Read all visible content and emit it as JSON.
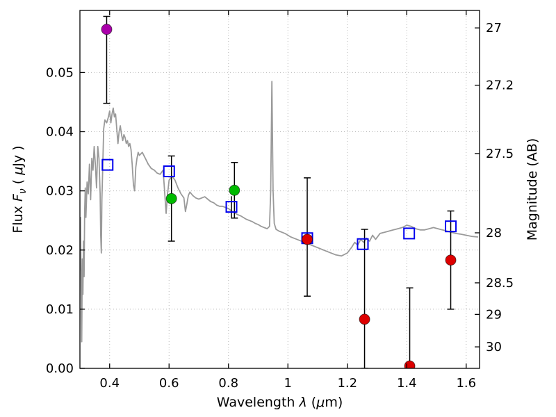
{
  "figure": {
    "title": ""
  },
  "chart_data": {
    "type": "scatter",
    "title": "",
    "xlabel_parts": [
      {
        "t": "Wavelength  "
      },
      {
        "t": "λ",
        "italic": true
      },
      {
        "t": " ("
      },
      {
        "t": "μ",
        "italic": true
      },
      {
        "t": "m)"
      }
    ],
    "ylabel_parts": [
      {
        "t": "Flux  "
      },
      {
        "t": "F",
        "italic": true
      },
      {
        "t": "ν",
        "italic": true,
        "sub": true
      },
      {
        "t": "  ( "
      },
      {
        "t": "μ",
        "italic": true
      },
      {
        "t": "Jy )"
      }
    ],
    "y2label": "Magnitude (AB)",
    "xlim": [
      0.3,
      1.645
    ],
    "ylim": [
      0,
      0.0605
    ],
    "grid": true,
    "x_ticks": [
      0.4,
      0.6,
      0.8,
      1.0,
      1.2,
      1.4,
      1.6
    ],
    "x_tick_labels": [
      "0.4",
      "0.6",
      "0.8",
      "1",
      "1.2",
      "1.4",
      "1.6"
    ],
    "y_ticks": [
      0,
      0.01,
      0.02,
      0.03,
      0.04,
      0.05
    ],
    "y_tick_labels": [
      "0.00",
      "0.01",
      "0.02",
      "0.03",
      "0.04",
      "0.05"
    ],
    "y2_ticks": [
      27,
      27.2,
      27.5,
      28,
      28.5,
      29,
      30
    ],
    "y2_tick_labels": [
      "27",
      "27.2",
      "27.5",
      "28",
      "28.5",
      "29",
      "30"
    ],
    "y2_map_zeropoint": 23.9,
    "colors": {
      "spectrum": "#9a9a9a",
      "model": "#0000ee",
      "errorbar": "#000000"
    },
    "spectrum": {
      "name": "model-spectrum",
      "points": [
        [
          0.3,
          0.0165
        ],
        [
          0.302,
          0.0255
        ],
        [
          0.304,
          0.0135
        ],
        [
          0.306,
          0.0045
        ],
        [
          0.308,
          0.0185
        ],
        [
          0.31,
          0.0125
        ],
        [
          0.312,
          0.0215
        ],
        [
          0.314,
          0.0155
        ],
        [
          0.316,
          0.0265
        ],
        [
          0.318,
          0.0305
        ],
        [
          0.32,
          0.0255
        ],
        [
          0.324,
          0.0315
        ],
        [
          0.328,
          0.0295
        ],
        [
          0.332,
          0.0345
        ],
        [
          0.336,
          0.0285
        ],
        [
          0.34,
          0.0355
        ],
        [
          0.344,
          0.0335
        ],
        [
          0.348,
          0.0375
        ],
        [
          0.352,
          0.0345
        ],
        [
          0.356,
          0.0305
        ],
        [
          0.36,
          0.0375
        ],
        [
          0.364,
          0.0355
        ],
        [
          0.368,
          0.0295
        ],
        [
          0.37,
          0.0225
        ],
        [
          0.372,
          0.0195
        ],
        [
          0.374,
          0.0285
        ],
        [
          0.376,
          0.0325
        ],
        [
          0.38,
          0.0405
        ],
        [
          0.384,
          0.042
        ],
        [
          0.39,
          0.0415
        ],
        [
          0.396,
          0.0425
        ],
        [
          0.4,
          0.0435
        ],
        [
          0.404,
          0.0415
        ],
        [
          0.408,
          0.043
        ],
        [
          0.412,
          0.044
        ],
        [
          0.416,
          0.0425
        ],
        [
          0.42,
          0.043
        ],
        [
          0.424,
          0.0405
        ],
        [
          0.428,
          0.038
        ],
        [
          0.432,
          0.04
        ],
        [
          0.436,
          0.041
        ],
        [
          0.44,
          0.0395
        ],
        [
          0.444,
          0.0385
        ],
        [
          0.448,
          0.0395
        ],
        [
          0.452,
          0.039
        ],
        [
          0.456,
          0.038
        ],
        [
          0.46,
          0.0385
        ],
        [
          0.464,
          0.0375
        ],
        [
          0.468,
          0.038
        ],
        [
          0.472,
          0.037
        ],
        [
          0.476,
          0.0345
        ],
        [
          0.48,
          0.031
        ],
        [
          0.484,
          0.03
        ],
        [
          0.488,
          0.034
        ],
        [
          0.492,
          0.0355
        ],
        [
          0.496,
          0.0365
        ],
        [
          0.5,
          0.036
        ],
        [
          0.51,
          0.0365
        ],
        [
          0.52,
          0.0355
        ],
        [
          0.53,
          0.0345
        ],
        [
          0.54,
          0.0338
        ],
        [
          0.55,
          0.0335
        ],
        [
          0.56,
          0.033
        ],
        [
          0.57,
          0.0328
        ],
        [
          0.58,
          0.0335
        ],
        [
          0.585,
          0.03
        ],
        [
          0.59,
          0.0262
        ],
        [
          0.595,
          0.0295
        ],
        [
          0.6,
          0.0318
        ],
        [
          0.61,
          0.0325
        ],
        [
          0.62,
          0.0318
        ],
        [
          0.63,
          0.0305
        ],
        [
          0.64,
          0.0295
        ],
        [
          0.65,
          0.0288
        ],
        [
          0.655,
          0.0265
        ],
        [
          0.66,
          0.0278
        ],
        [
          0.665,
          0.0292
        ],
        [
          0.67,
          0.0298
        ],
        [
          0.68,
          0.0292
        ],
        [
          0.69,
          0.0288
        ],
        [
          0.7,
          0.0286
        ],
        [
          0.71,
          0.0288
        ],
        [
          0.72,
          0.029
        ],
        [
          0.73,
          0.0286
        ],
        [
          0.74,
          0.0282
        ],
        [
          0.75,
          0.028
        ],
        [
          0.76,
          0.0276
        ],
        [
          0.77,
          0.0274
        ],
        [
          0.78,
          0.0274
        ],
        [
          0.79,
          0.0272
        ],
        [
          0.8,
          0.027
        ],
        [
          0.81,
          0.0266
        ],
        [
          0.82,
          0.0263
        ],
        [
          0.83,
          0.026
        ],
        [
          0.84,
          0.0258
        ],
        [
          0.85,
          0.0255
        ],
        [
          0.86,
          0.0252
        ],
        [
          0.87,
          0.025
        ],
        [
          0.88,
          0.0248
        ],
        [
          0.89,
          0.0245
        ],
        [
          0.9,
          0.0243
        ],
        [
          0.91,
          0.024
        ],
        [
          0.92,
          0.0238
        ],
        [
          0.93,
          0.0236
        ],
        [
          0.938,
          0.024
        ],
        [
          0.942,
          0.03
        ],
        [
          0.946,
          0.0485
        ],
        [
          0.95,
          0.03
        ],
        [
          0.954,
          0.0245
        ],
        [
          0.96,
          0.0235
        ],
        [
          0.97,
          0.0232
        ],
        [
          0.98,
          0.023
        ],
        [
          0.99,
          0.0228
        ],
        [
          1.0,
          0.0225
        ],
        [
          1.01,
          0.0222
        ],
        [
          1.02,
          0.022
        ],
        [
          1.04,
          0.0216
        ],
        [
          1.06,
          0.0212
        ],
        [
          1.08,
          0.0208
        ],
        [
          1.1,
          0.0204
        ],
        [
          1.12,
          0.02
        ],
        [
          1.14,
          0.0196
        ],
        [
          1.16,
          0.0192
        ],
        [
          1.18,
          0.019
        ],
        [
          1.2,
          0.0195
        ],
        [
          1.215,
          0.0205
        ],
        [
          1.225,
          0.0213
        ],
        [
          1.235,
          0.0208
        ],
        [
          1.245,
          0.0218
        ],
        [
          1.255,
          0.0213
        ],
        [
          1.265,
          0.022
        ],
        [
          1.275,
          0.0215
        ],
        [
          1.285,
          0.0225
        ],
        [
          1.295,
          0.0218
        ],
        [
          1.31,
          0.0228
        ],
        [
          1.325,
          0.023
        ],
        [
          1.34,
          0.0232
        ],
        [
          1.355,
          0.0234
        ],
        [
          1.37,
          0.0236
        ],
        [
          1.385,
          0.0238
        ],
        [
          1.4,
          0.0242
        ],
        [
          1.415,
          0.024
        ],
        [
          1.43,
          0.0236
        ],
        [
          1.445,
          0.0234
        ],
        [
          1.46,
          0.0234
        ],
        [
          1.475,
          0.0236
        ],
        [
          1.49,
          0.0238
        ],
        [
          1.505,
          0.0236
        ],
        [
          1.52,
          0.0234
        ],
        [
          1.535,
          0.0232
        ],
        [
          1.55,
          0.023
        ],
        [
          1.565,
          0.0228
        ],
        [
          1.58,
          0.0227
        ],
        [
          1.6,
          0.0225
        ],
        [
          1.62,
          0.0223
        ],
        [
          1.64,
          0.0222
        ]
      ]
    },
    "model_photometry": {
      "name": "model-photometry-squares",
      "marker": "open-square",
      "points": [
        {
          "x": 0.393,
          "y": 0.0344
        },
        {
          "x": 0.6,
          "y": 0.0333
        },
        {
          "x": 0.81,
          "y": 0.0273,
          "err": 0.0018
        },
        {
          "x": 1.065,
          "y": 0.022
        },
        {
          "x": 1.252,
          "y": 0.021
        },
        {
          "x": 1.408,
          "y": 0.0228
        },
        {
          "x": 1.548,
          "y": 0.024
        }
      ]
    },
    "observed_photometry": {
      "name": "observed-photometry-circles",
      "marker": "filled-circle",
      "points": [
        {
          "x": 0.39,
          "y": 0.0573,
          "err_lo": 0.0125,
          "err_hi": 0.0022,
          "color": "#aa00aa"
        },
        {
          "x": 0.608,
          "y": 0.0287,
          "err_lo": 0.0072,
          "err_hi": 0.0072,
          "color": "#00bb00"
        },
        {
          "x": 0.82,
          "y": 0.0301,
          "err_lo": 0.0047,
          "err_hi": 0.0047,
          "color": "#00bb00"
        },
        {
          "x": 1.065,
          "y": 0.0218,
          "err_lo": 0.0096,
          "err_hi": 0.0104,
          "color": "#dd0000"
        },
        {
          "x": 1.258,
          "y": 0.0083,
          "err_lo": 0.0083,
          "err_hi": 0.0152,
          "color": "#dd0000"
        },
        {
          "x": 1.41,
          "y": 0.0004,
          "err_lo": 0.0004,
          "err_hi": 0.0132,
          "color": "#dd0000"
        },
        {
          "x": 1.548,
          "y": 0.0183,
          "err_lo": 0.0083,
          "err_hi": 0.0083,
          "color": "#dd0000"
        }
      ]
    }
  }
}
